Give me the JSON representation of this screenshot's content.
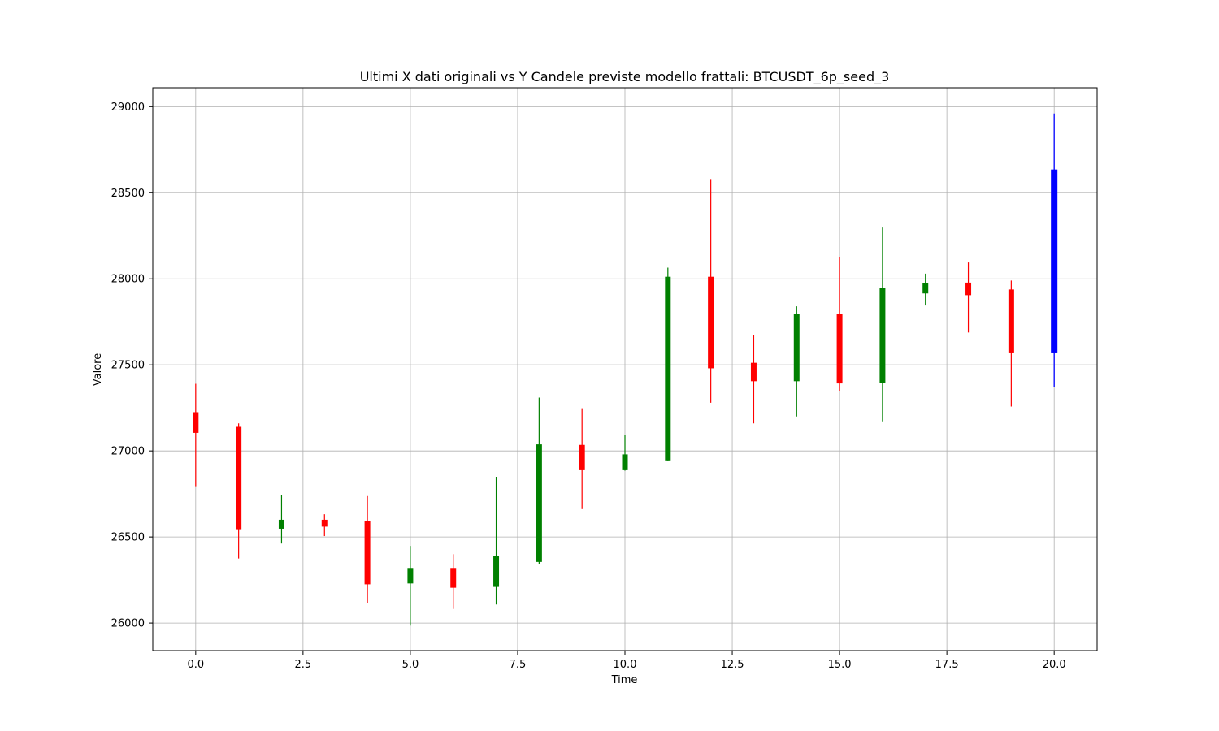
{
  "chart_data": {
    "type": "candlestick",
    "title": "Ultimi X dati originali vs Y Candele previste modello frattali: BTCUSDT_6p_seed_3",
    "xlabel": "Time",
    "ylabel": "Valore",
    "xlim": [
      -1,
      21
    ],
    "ylim": [
      25840,
      29110
    ],
    "x_ticks": [
      0.0,
      2.5,
      5.0,
      7.5,
      10.0,
      12.5,
      15.0,
      17.5,
      20.0
    ],
    "x_tick_labels": [
      "0.0",
      "2.5",
      "5.0",
      "7.5",
      "10.0",
      "12.5",
      "15.0",
      "17.5",
      "20.0"
    ],
    "y_ticks": [
      26000,
      26500,
      27000,
      27500,
      28000,
      28500,
      29000
    ],
    "y_tick_labels": [
      "26000",
      "26500",
      "27000",
      "27500",
      "28000",
      "28500",
      "29000"
    ],
    "grid": true,
    "colors": {
      "up": "#008000",
      "down": "#ff0000",
      "predicted": "#0000ff",
      "grid": "#b0b0b0"
    },
    "candles": [
      {
        "x": 0,
        "open": 27225,
        "high": 27390,
        "low": 26795,
        "close": 27105,
        "kind": "down"
      },
      {
        "x": 1,
        "open": 27140,
        "high": 27160,
        "low": 26375,
        "close": 26545,
        "kind": "down"
      },
      {
        "x": 2,
        "open": 26548,
        "high": 26742,
        "low": 26462,
        "close": 26600,
        "kind": "up"
      },
      {
        "x": 3,
        "open": 26600,
        "high": 26632,
        "low": 26505,
        "close": 26560,
        "kind": "down"
      },
      {
        "x": 4,
        "open": 26595,
        "high": 26738,
        "low": 26115,
        "close": 26225,
        "kind": "down"
      },
      {
        "x": 5,
        "open": 26230,
        "high": 26448,
        "low": 25985,
        "close": 26320,
        "kind": "up"
      },
      {
        "x": 6,
        "open": 26320,
        "high": 26400,
        "low": 26082,
        "close": 26205,
        "kind": "down"
      },
      {
        "x": 7,
        "open": 26210,
        "high": 26850,
        "low": 26108,
        "close": 26390,
        "kind": "up"
      },
      {
        "x": 8,
        "open": 26355,
        "high": 27310,
        "low": 26340,
        "close": 27038,
        "kind": "up"
      },
      {
        "x": 9,
        "open": 27035,
        "high": 27248,
        "low": 26662,
        "close": 26888,
        "kind": "down"
      },
      {
        "x": 10,
        "open": 26888,
        "high": 27095,
        "low": 26885,
        "close": 26980,
        "kind": "up"
      },
      {
        "x": 11,
        "open": 26945,
        "high": 28065,
        "low": 26945,
        "close": 28012,
        "kind": "up"
      },
      {
        "x": 12,
        "open": 28012,
        "high": 28580,
        "low": 27280,
        "close": 27480,
        "kind": "down"
      },
      {
        "x": 13,
        "open": 27512,
        "high": 27675,
        "low": 27160,
        "close": 27405,
        "kind": "down"
      },
      {
        "x": 14,
        "open": 27405,
        "high": 27840,
        "low": 27200,
        "close": 27795,
        "kind": "up"
      },
      {
        "x": 15,
        "open": 27795,
        "high": 28125,
        "low": 27350,
        "close": 27392,
        "kind": "down"
      },
      {
        "x": 16,
        "open": 27395,
        "high": 28298,
        "low": 27172,
        "close": 27948,
        "kind": "up"
      },
      {
        "x": 17,
        "open": 27915,
        "high": 28030,
        "low": 27845,
        "close": 27975,
        "kind": "up"
      },
      {
        "x": 18,
        "open": 27978,
        "high": 28095,
        "low": 27688,
        "close": 27905,
        "kind": "down"
      },
      {
        "x": 19,
        "open": 27938,
        "high": 27990,
        "low": 27258,
        "close": 27572,
        "kind": "down"
      },
      {
        "x": 20,
        "open": 27572,
        "high": 28960,
        "low": 27370,
        "close": 28635,
        "kind": "predicted"
      }
    ]
  }
}
